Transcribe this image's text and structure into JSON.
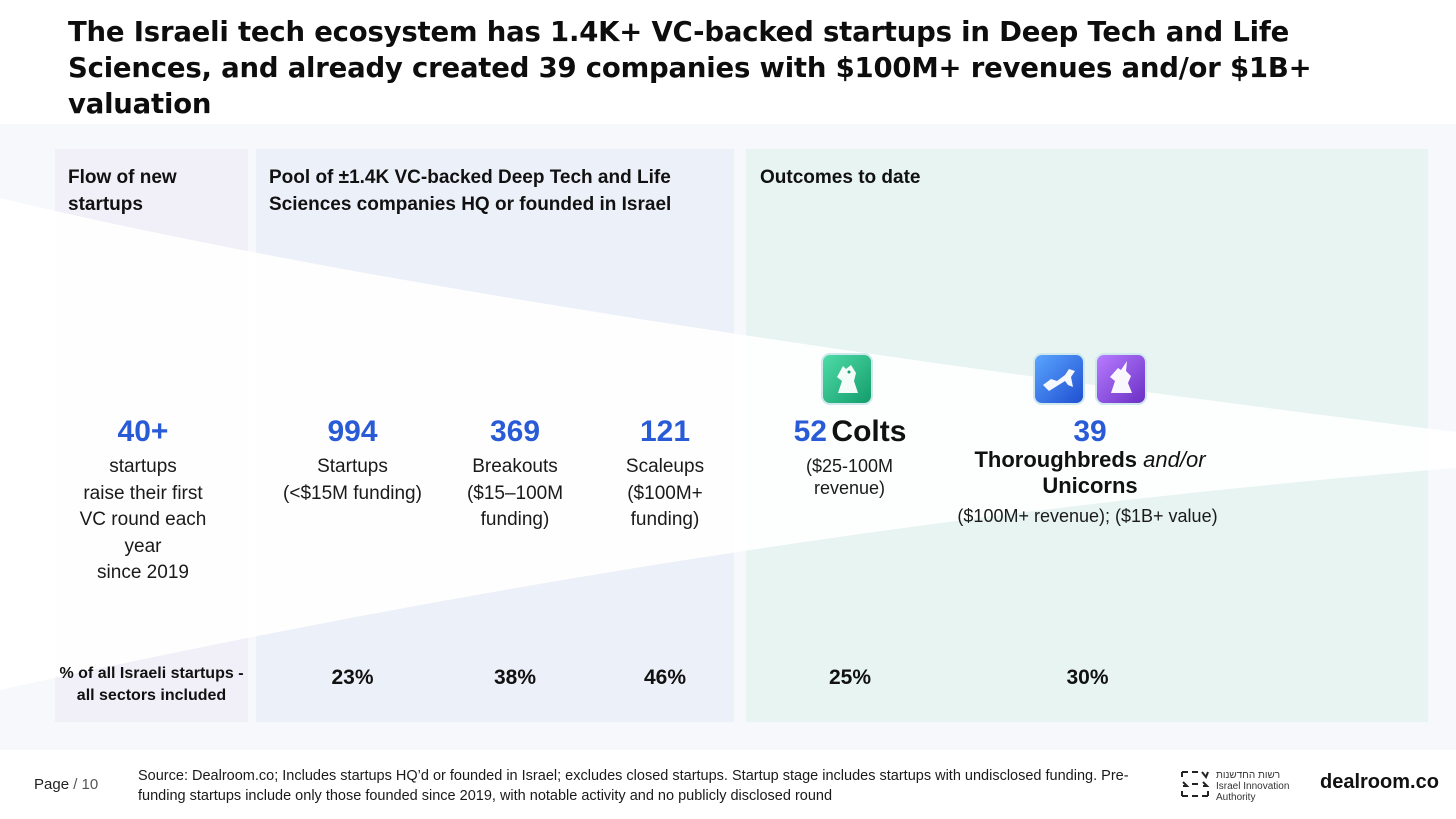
{
  "title": "The Israeli tech ecosystem has 1.4K+ VC-backed startups in Deep Tech and Life Sciences, and already created 39 companies with $100M+ revenues and/or $1B+ valuation",
  "sections": {
    "flow": "Flow of new startups",
    "pool": "Pool of ±1.4K VC-backed Deep Tech and Life Sciences companies HQ or founded in Israel",
    "outcomes": "Outcomes to date"
  },
  "stats": {
    "flow": {
      "value": "40+",
      "lines": [
        "startups",
        "raise their first",
        "VC round each",
        "year",
        "since 2019"
      ]
    },
    "startups": {
      "value": "994",
      "lines": [
        "Startups",
        "(<$15M funding)"
      ]
    },
    "breakouts": {
      "value": "369",
      "lines": [
        "Breakouts",
        "($15–100M",
        "funding)"
      ]
    },
    "scaleups": {
      "value": "121",
      "lines": [
        "Scaleups",
        "($100M+",
        "funding)"
      ]
    },
    "colts": {
      "value": "52",
      "name": "Colts",
      "lines": [
        "($25-100M",
        "revenue)"
      ]
    },
    "thoroughbreds": {
      "value": "39",
      "name": "Thoroughbreds",
      "connector": "and/or",
      "name2": "Unicorns",
      "detail": "($100M+ revenue); ($1B+ value)"
    }
  },
  "percent_row": {
    "label": "% of all Israeli startups - all sectors included",
    "values": {
      "startups": "23%",
      "breakouts": "38%",
      "scaleups": "46%",
      "colts": "25%",
      "thoroughbreds": "30%"
    }
  },
  "icons": [
    "horse-head-icon",
    "running-horse-icon",
    "unicorn-icon"
  ],
  "footer": {
    "page_label": "Page",
    "page_number": "/ 10",
    "source": "Source: Dealroom.co; Includes startups HQ’d or founded in Israel; excludes closed startups. Startup stage includes startups with undisclosed funding. Pre-funding startups include only those founded since 2019, with notable activity and no publicly disclosed round",
    "partner": [
      "רשות החדשנות",
      "Israel Innovation",
      "Authority"
    ],
    "brand": "dealroom.co"
  },
  "colors": {
    "accent_blue": "#2a5bd7",
    "flow_bg": "#f1eff7",
    "pool_bg": "#ecf0f8",
    "outcomes_bg": "#e7f4f2"
  }
}
